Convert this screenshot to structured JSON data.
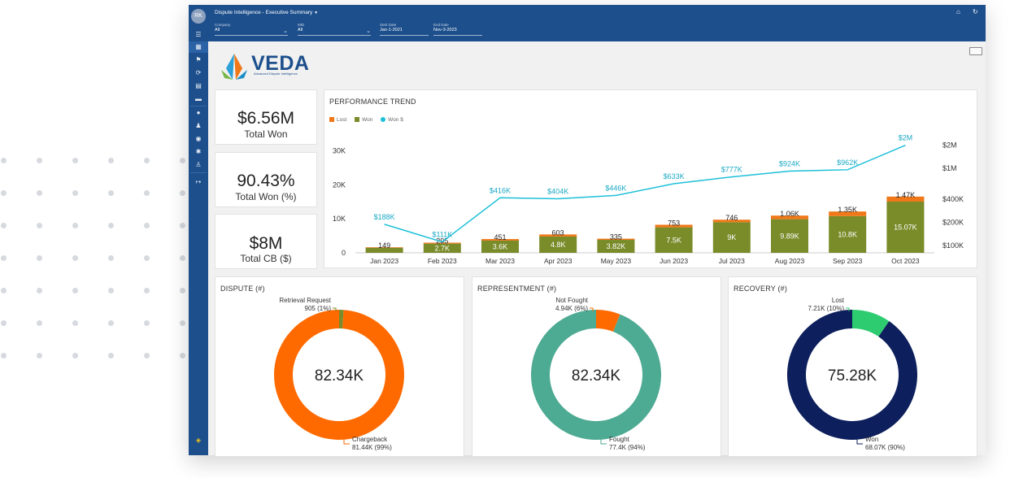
{
  "header": {
    "user_initials": "RK",
    "title": "Dispute Intelligence - Executive Summary",
    "dropdown_icon": "chevron-down-icon",
    "home_icon": "home-icon",
    "refresh_icon": "refresh-icon"
  },
  "filters": [
    {
      "label": "Company",
      "value": "All"
    },
    {
      "label": "MID",
      "value": "All"
    },
    {
      "label": "Start Date",
      "value": "Jan-1-2021"
    },
    {
      "label": "End Date",
      "value": "Nov-3-2023"
    }
  ],
  "sidebar": {
    "icons": [
      "menu-icon",
      "dashboard-icon",
      "flag-icon",
      "sync-icon",
      "document-icon",
      "folder-icon",
      "chat-icon",
      "users-icon",
      "database-icon",
      "settings-icon",
      "user-icon",
      "logout-icon"
    ],
    "footer_icon": "brand-icon"
  },
  "logo": {
    "name": "VEDA",
    "tagline": "Advanced Dispute Intelligence"
  },
  "kpis": [
    {
      "value": "$6.56M",
      "label": "Total Won"
    },
    {
      "value": "90.43%",
      "label": "Total Won (%)"
    },
    {
      "value": "$8M",
      "label": "Total CB ($)"
    }
  ],
  "colors": {
    "lost": "#f07818",
    "won": "#7a8b2a",
    "won_dollars": "#1ec0d9",
    "dispute_main": "#ff6a00",
    "dispute_minor": "#7a8b2a",
    "represent_main": "#4daa93",
    "represent_minor": "#ff6a00",
    "recovery_main": "#0d1f5c",
    "recovery_minor": "#2ecc71",
    "nav_blue": "#1d4f8c"
  },
  "chart_data": [
    {
      "type": "bar",
      "title": "PERFORMANCE TREND",
      "categories": [
        "Jan 2023",
        "Feb 2023",
        "Mar 2023",
        "Apr 2023",
        "May 2023",
        "Jun 2023",
        "Jul 2023",
        "Aug 2023",
        "Sep 2023",
        "Oct 2023"
      ],
      "series": [
        {
          "name": "Lost",
          "values": [
            149,
            295,
            451,
            603,
            335,
            753,
            746,
            1060,
            1350,
            1470
          ],
          "labels": [
            "149",
            "295",
            "451",
            "603",
            "335",
            "753",
            "746",
            "1.06K",
            "1.35K",
            "1.47K"
          ]
        },
        {
          "name": "Won",
          "values": [
            1500,
            2700,
            3600,
            4800,
            3820,
            7500,
            9000,
            9890,
            10800,
            15070
          ],
          "labels": [
            "1.5K",
            "2.7K",
            "3.6K",
            "4.8K",
            "3.82K",
            "7.5K",
            "9K",
            "9.89K",
            "10.8K",
            "15.07K"
          ]
        },
        {
          "name": "Won $",
          "type": "line",
          "axis": "right",
          "values": [
            188000,
            111000,
            416000,
            404000,
            446000,
            633000,
            777000,
            924000,
            962000,
            2000000
          ],
          "labels": [
            "$188K",
            "$111K",
            "$416K",
            "$404K",
            "$446K",
            "$633K",
            "$777K",
            "$924K",
            "$962K",
            "$2M"
          ]
        }
      ],
      "y_ticks": [
        "0",
        "10K",
        "20K",
        "30K"
      ],
      "ylim": [
        0,
        33000
      ],
      "y2_ticks": [
        "$100K",
        "$200K",
        "$400K",
        "$1M",
        "$2M"
      ],
      "y2_scale": "log",
      "legend_position": "top-left"
    },
    {
      "type": "pie",
      "title": "DISPUTE (#)",
      "center": "82.34K",
      "slices": [
        {
          "name": "Retrieval Request",
          "value": 905,
          "text": "905 (1%)"
        },
        {
          "name": "Chargeback",
          "value": 81440,
          "text": "81.44K (99%)"
        }
      ]
    },
    {
      "type": "pie",
      "title": "REPRESENTMENT (#)",
      "center": "82.34K",
      "slices": [
        {
          "name": "Not Fought",
          "value": 4940,
          "text": "4.94K (6%)"
        },
        {
          "name": "Fought",
          "value": 77400,
          "text": "77.4K (94%)"
        }
      ]
    },
    {
      "type": "pie",
      "title": "RECOVERY (#)",
      "center": "75.28K",
      "slices": [
        {
          "name": "Lost",
          "value": 7210,
          "text": "7.21K (10%)"
        },
        {
          "name": "Won",
          "value": 68070,
          "text": "68.07K (90%)"
        }
      ]
    }
  ]
}
